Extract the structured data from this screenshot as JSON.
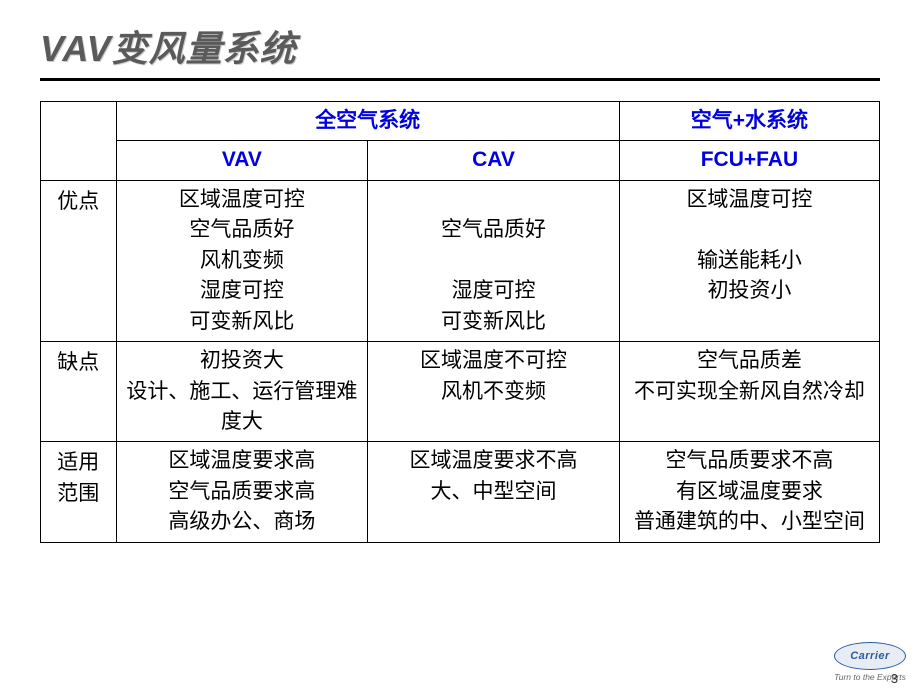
{
  "title": "VAV变风量系统",
  "headers": {
    "group1": "全空气系统",
    "group2": "空气+水系统",
    "sub1": "VAV",
    "sub2": "CAV",
    "sub3": "FCU+FAU"
  },
  "rows": {
    "r1": {
      "label": "优点",
      "vav": [
        "区域温度可控",
        "空气品质好",
        "风机变频",
        "湿度可控",
        "可变新风比"
      ],
      "cav": [
        "",
        "空气品质好",
        "",
        "湿度可控",
        "可变新风比"
      ],
      "fcu": [
        "区域温度可控",
        "",
        "输送能耗小",
        "初投资小"
      ]
    },
    "r2": {
      "label": "缺点",
      "vav": [
        "初投资大",
        "设计、施工、运行管理难度大"
      ],
      "cav": [
        "区域温度不可控",
        "风机不变频"
      ],
      "fcu": [
        "空气品质差",
        "不可实现全新风自然冷却"
      ]
    },
    "r3": {
      "label0": "适用",
      "label1": "范围",
      "vav": [
        "区域温度要求高",
        "空气品质要求高",
        "高级办公、商场"
      ],
      "cav": [
        "区域温度要求不高",
        "大、中型空间"
      ],
      "fcu": [
        "空气品质要求不高",
        "有区域温度要求",
        "普通建筑的中、小型空间"
      ]
    }
  },
  "logo": {
    "brand": "Carrier",
    "tagline": "Turn to the Experts"
  },
  "page": "3"
}
